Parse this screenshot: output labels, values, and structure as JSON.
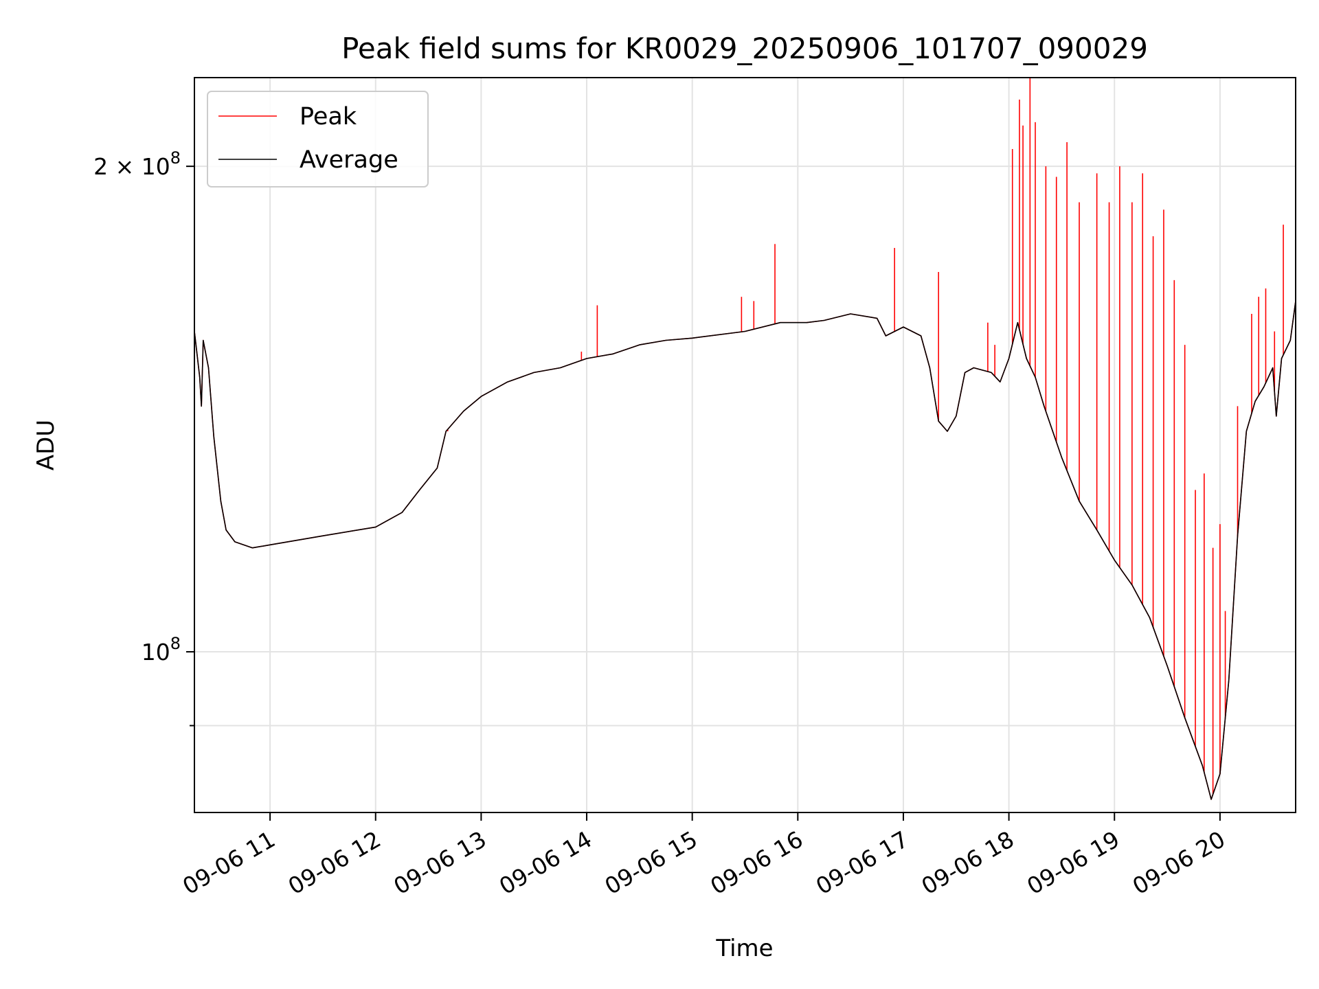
{
  "chart_data": {
    "type": "line",
    "title": "Peak field sums for KR0029_20250906_101707_090029",
    "xlabel": "Time",
    "ylabel": "ADU",
    "x_scale": "time",
    "y_scale": "log",
    "xlim": [
      "2025-09-06 10:17",
      "2025-09-06 20:43"
    ],
    "ylim": [
      79500000,
      227000000
    ],
    "x_ticks": [
      {
        "value": "2025-09-06 11:00",
        "label": "09-06 11"
      },
      {
        "value": "2025-09-06 12:00",
        "label": "09-06 12"
      },
      {
        "value": "2025-09-06 13:00",
        "label": "09-06 13"
      },
      {
        "value": "2025-09-06 14:00",
        "label": "09-06 14"
      },
      {
        "value": "2025-09-06 15:00",
        "label": "09-06 15"
      },
      {
        "value": "2025-09-06 16:00",
        "label": "09-06 16"
      },
      {
        "value": "2025-09-06 17:00",
        "label": "09-06 17"
      },
      {
        "value": "2025-09-06 18:00",
        "label": "09-06 18"
      },
      {
        "value": "2025-09-06 19:00",
        "label": "09-06 19"
      },
      {
        "value": "2025-09-06 20:00",
        "label": "09-06 20"
      }
    ],
    "y_ticks_major": [
      {
        "value": 100000000,
        "label_base": "10",
        "label_exp": "8",
        "label_prefix": ""
      },
      {
        "value": 200000000,
        "label_base": "10",
        "label_exp": "8",
        "label_prefix": "2 × "
      }
    ],
    "y_ticks_minor": [
      90000000
    ],
    "grid": true,
    "legend": {
      "position": "top-left",
      "entries": [
        "Peak",
        "Average"
      ]
    },
    "colors": {
      "peak": "#ff0000",
      "average": "#000000"
    },
    "series": [
      {
        "name": "Average",
        "color": "#000000",
        "x": [
          "2025-09-06 10:17",
          "2025-09-06 10:20",
          "2025-09-06 10:21",
          "2025-09-06 10:22",
          "2025-09-06 10:25",
          "2025-09-06 10:28",
          "2025-09-06 10:32",
          "2025-09-06 10:35",
          "2025-09-06 10:40",
          "2025-09-06 10:50",
          "2025-09-06 11:00",
          "2025-09-06 11:30",
          "2025-09-06 12:00",
          "2025-09-06 12:15",
          "2025-09-06 12:25",
          "2025-09-06 12:35",
          "2025-09-06 12:40",
          "2025-09-06 12:50",
          "2025-09-06 13:00",
          "2025-09-06 13:15",
          "2025-09-06 13:30",
          "2025-09-06 13:45",
          "2025-09-06 14:00",
          "2025-09-06 14:15",
          "2025-09-06 14:30",
          "2025-09-06 14:45",
          "2025-09-06 15:00",
          "2025-09-06 15:30",
          "2025-09-06 15:50",
          "2025-09-06 16:05",
          "2025-09-06 16:15",
          "2025-09-06 16:30",
          "2025-09-06 16:45",
          "2025-09-06 16:50",
          "2025-09-06 17:00",
          "2025-09-06 17:10",
          "2025-09-06 17:15",
          "2025-09-06 17:20",
          "2025-09-06 17:25",
          "2025-09-06 17:30",
          "2025-09-06 17:35",
          "2025-09-06 17:40",
          "2025-09-06 17:50",
          "2025-09-06 17:55",
          "2025-09-06 18:00",
          "2025-09-06 18:05",
          "2025-09-06 18:10",
          "2025-09-06 18:15",
          "2025-09-06 18:20",
          "2025-09-06 18:30",
          "2025-09-06 18:40",
          "2025-09-06 18:50",
          "2025-09-06 19:00",
          "2025-09-06 19:10",
          "2025-09-06 19:20",
          "2025-09-06 19:30",
          "2025-09-06 19:40",
          "2025-09-06 19:50",
          "2025-09-06 19:55",
          "2025-09-06 20:00",
          "2025-09-06 20:05",
          "2025-09-06 20:10",
          "2025-09-06 20:15",
          "2025-09-06 20:20",
          "2025-09-06 20:25",
          "2025-09-06 20:30",
          "2025-09-06 20:32",
          "2025-09-06 20:35",
          "2025-09-06 20:40",
          "2025-09-06 20:43"
        ],
        "values": [
          158000000,
          148000000,
          142000000,
          156000000,
          150000000,
          136000000,
          124000000,
          119000000,
          117000000,
          116000000,
          116500000,
          118000000,
          119500000,
          122000000,
          126000000,
          130000000,
          137000000,
          141000000,
          144000000,
          147000000,
          149000000,
          150000000,
          152000000,
          153000000,
          155000000,
          156000000,
          156500000,
          158000000,
          160000000,
          160000000,
          160500000,
          162000000,
          161000000,
          157000000,
          159000000,
          157000000,
          150000000,
          139000000,
          137000000,
          140000000,
          149000000,
          150000000,
          149000000,
          147000000,
          152000000,
          160000000,
          152000000,
          148000000,
          142000000,
          132000000,
          124000000,
          119000000,
          114000000,
          110000000,
          105000000,
          98000000,
          91000000,
          85000000,
          81000000,
          84000000,
          96000000,
          118000000,
          137000000,
          143000000,
          146000000,
          150000000,
          140000000,
          152000000,
          156000000,
          165000000
        ]
      },
      {
        "name": "Peak",
        "color": "#ff0000",
        "spikes": [
          {
            "x": "2025-09-06 12:41",
            "y": 137000000
          },
          {
            "x": "2025-09-06 13:57",
            "y": 153500000
          },
          {
            "x": "2025-09-06 14:06",
            "y": 164000000
          },
          {
            "x": "2025-09-06 15:28",
            "y": 166000000
          },
          {
            "x": "2025-09-06 15:35",
            "y": 165000000
          },
          {
            "x": "2025-09-06 15:47",
            "y": 179000000
          },
          {
            "x": "2025-09-06 16:55",
            "y": 178000000
          },
          {
            "x": "2025-09-06 17:20",
            "y": 172000000
          },
          {
            "x": "2025-09-06 17:48",
            "y": 160000000
          },
          {
            "x": "2025-09-06 17:52",
            "y": 155000000
          },
          {
            "x": "2025-09-06 18:02",
            "y": 205000000
          },
          {
            "x": "2025-09-06 18:06",
            "y": 220000000
          },
          {
            "x": "2025-09-06 18:08",
            "y": 212000000
          },
          {
            "x": "2025-09-06 18:12",
            "y": 228000000
          },
          {
            "x": "2025-09-06 18:15",
            "y": 213000000
          },
          {
            "x": "2025-09-06 18:21",
            "y": 200000000
          },
          {
            "x": "2025-09-06 18:27",
            "y": 197000000
          },
          {
            "x": "2025-09-06 18:33",
            "y": 207000000
          },
          {
            "x": "2025-09-06 18:40",
            "y": 190000000
          },
          {
            "x": "2025-09-06 18:50",
            "y": 198000000
          },
          {
            "x": "2025-09-06 18:57",
            "y": 190000000
          },
          {
            "x": "2025-09-06 19:03",
            "y": 200000000
          },
          {
            "x": "2025-09-06 19:10",
            "y": 190000000
          },
          {
            "x": "2025-09-06 19:16",
            "y": 198000000
          },
          {
            "x": "2025-09-06 19:22",
            "y": 181000000
          },
          {
            "x": "2025-09-06 19:28",
            "y": 188000000
          },
          {
            "x": "2025-09-06 19:34",
            "y": 170000000
          },
          {
            "x": "2025-09-06 19:40",
            "y": 155000000
          },
          {
            "x": "2025-09-06 19:46",
            "y": 126000000
          },
          {
            "x": "2025-09-06 19:51",
            "y": 129000000
          },
          {
            "x": "2025-09-06 19:56",
            "y": 116000000
          },
          {
            "x": "2025-09-06 20:00",
            "y": 120000000
          },
          {
            "x": "2025-09-06 20:03",
            "y": 106000000
          },
          {
            "x": "2025-09-06 20:10",
            "y": 142000000
          },
          {
            "x": "2025-09-06 20:18",
            "y": 162000000
          },
          {
            "x": "2025-09-06 20:22",
            "y": 166000000
          },
          {
            "x": "2025-09-06 20:26",
            "y": 168000000
          },
          {
            "x": "2025-09-06 20:31",
            "y": 158000000
          },
          {
            "x": "2025-09-06 20:36",
            "y": 184000000
          }
        ]
      }
    ]
  }
}
